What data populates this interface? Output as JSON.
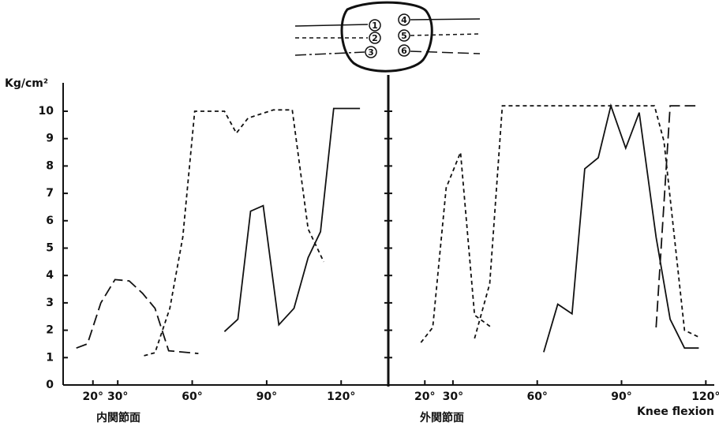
{
  "chart_data": {
    "type": "line",
    "ylabel": "Kg/cm²",
    "xlabel": "Knee flexion",
    "ylim": [
      0,
      10
    ],
    "yticks": [
      0,
      1,
      2,
      3,
      4,
      5,
      6,
      7,
      8,
      9,
      10
    ],
    "panels": [
      {
        "label": "内関節面",
        "xlim": [
          8,
          139
        ],
        "xticks": [
          {
            "value": 20,
            "label": "20°"
          },
          {
            "value": 30,
            "label": "30°"
          },
          {
            "value": 60,
            "label": "60°"
          },
          {
            "value": 90,
            "label": "90°"
          },
          {
            "value": 120,
            "label": "120°"
          }
        ],
        "series": [
          {
            "color": "#111",
            "dash": "long",
            "x": [
              13.3,
              17.8,
              23.2,
              28.9,
              34.6,
              40,
              45,
              50.5,
              62.5
            ],
            "values": [
              1.35,
              1.5,
              3.0,
              3.85,
              3.8,
              3.35,
              2.8,
              1.25,
              1.15
            ]
          },
          {
            "color": "#111",
            "dash": "short",
            "x": [
              40.6,
              45,
              51,
              56.2,
              61,
              73,
              77.8,
              82.5,
              92.7,
              100.3,
              106.7,
              113
            ],
            "values": [
              1.07,
              1.18,
              2.8,
              5.4,
              10.0,
              10.0,
              9.2,
              9.75,
              10.05,
              10.05,
              5.7,
              4.5
            ]
          },
          {
            "color": "#111",
            "dash": "solid",
            "x": [
              73,
              78.4,
              83.5,
              88.6,
              94.9,
              101,
              106.7,
              111.7,
              117,
              127.6
            ],
            "values": [
              1.95,
              2.4,
              6.35,
              6.55,
              2.2,
              2.8,
              4.65,
              5.6,
              10.1,
              10.1
            ]
          }
        ]
      },
      {
        "label": "外関節面",
        "xlim": [
          7,
          123
        ],
        "xticks": [
          {
            "value": 20,
            "label": "20°"
          },
          {
            "value": 30,
            "label": "30°"
          },
          {
            "value": 60,
            "label": "60°"
          },
          {
            "value": 90,
            "label": "90°"
          },
          {
            "value": 120,
            "label": "120°"
          }
        ],
        "series": [
          {
            "color": "#111",
            "dash": "short",
            "x": [
              18.6,
              22.8,
              27.6,
              32.7,
              37.7,
              43.7
            ],
            "values": [
              1.55,
              2.1,
              7.2,
              8.5,
              2.55,
              2.1
            ]
          },
          {
            "color": "#111",
            "dash": "short",
            "x": [
              37.7,
              43.1,
              47.6,
              101.7,
              105.1,
              112.4,
              117.5
            ],
            "values": [
              1.7,
              3.7,
              10.2,
              10.2,
              8.9,
              2.0,
              1.75
            ]
          },
          {
            "color": "#111",
            "dash": "long",
            "x": [
              102.3,
              107.3,
              116.3
            ],
            "values": [
              2.1,
              10.2,
              10.2
            ]
          },
          {
            "color": "#111",
            "dash": "solid",
            "x": [
              62.3,
              67.3,
              72.4,
              76.9,
              81.7,
              86.2,
              91.5,
              96.3,
              102.3,
              107.3,
              112.4,
              117.5
            ],
            "values": [
              1.2,
              2.95,
              2.6,
              7.9,
              8.3,
              10.2,
              8.65,
              9.95,
              5.4,
              2.4,
              1.35,
              1.35
            ]
          }
        ]
      }
    ]
  },
  "diagram": {
    "sensors": [
      "1",
      "2",
      "3",
      "4",
      "5",
      "6"
    ]
  }
}
